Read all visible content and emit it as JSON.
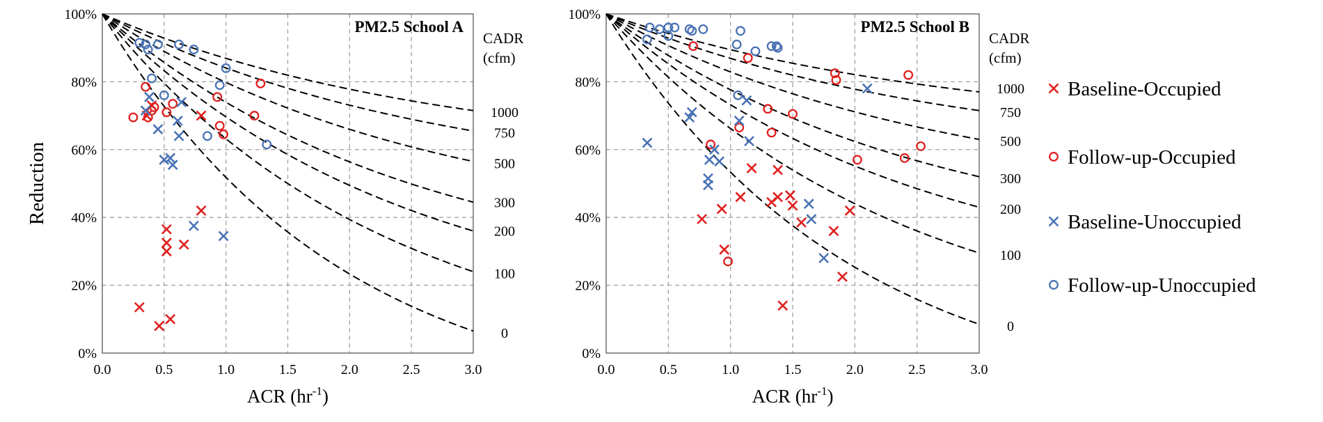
{
  "chart_data": [
    {
      "type": "scatter",
      "title": "PM2.5 School A",
      "xlabel": "ACR (hr",
      "xlabel_sup": "-1",
      "xlabel_close": ")",
      "ylabel": "Reduction",
      "xlim": [
        0,
        3
      ],
      "ylim": [
        0,
        100
      ],
      "x_ticks": [
        "0.0",
        "0.5",
        "1.0",
        "1.5",
        "2.0",
        "2.5",
        "3.0"
      ],
      "y_ticks": [
        "0%",
        "20%",
        "40%",
        "60%",
        "80%",
        "100%"
      ],
      "cadr_title": [
        "CADR",
        "(cfm)"
      ],
      "cadr_labels": [
        {
          "label": "1000",
          "y": 71
        },
        {
          "label": "750",
          "y": 65
        },
        {
          "label": "500",
          "y": 56
        },
        {
          "label": "300",
          "y": 44.5
        },
        {
          "label": "200",
          "y": 36
        },
        {
          "label": "100",
          "y": 23.5
        },
        {
          "label": "0",
          "y": 6
        }
      ],
      "curves": [
        {
          "label": "1000",
          "end": 71.5
        },
        {
          "label": "750",
          "end": 65.5
        },
        {
          "label": "500",
          "end": 56.5
        },
        {
          "label": "300",
          "end": 44.5
        },
        {
          "label": "200",
          "end": 36
        },
        {
          "label": "100",
          "end": 24
        },
        {
          "label": "0",
          "end": 6.5
        }
      ],
      "series": [
        {
          "name": "Baseline-Occupied",
          "points": [
            [
              0.3,
              13.5
            ],
            [
              0.46,
              8
            ],
            [
              0.55,
              10
            ],
            [
              0.52,
              30
            ],
            [
              0.52,
              32.5
            ],
            [
              0.52,
              36.5
            ],
            [
              0.66,
              32
            ],
            [
              0.8,
              42
            ],
            [
              0.36,
              70
            ],
            [
              0.4,
              73
            ],
            [
              0.8,
              70
            ]
          ]
        },
        {
          "name": "Follow-up-Occupied",
          "points": [
            [
              0.25,
              69.5
            ],
            [
              0.35,
              78.5
            ],
            [
              0.37,
              69.5
            ],
            [
              0.4,
              71.5
            ],
            [
              0.42,
              72.5
            ],
            [
              0.52,
              71
            ],
            [
              0.57,
              73.5
            ],
            [
              0.93,
              75.5
            ],
            [
              0.95,
              67
            ],
            [
              0.98,
              64.5
            ],
            [
              1.23,
              70
            ],
            [
              1.28,
              79.5
            ]
          ]
        },
        {
          "name": "Baseline-Unoccupied",
          "points": [
            [
              0.35,
              71.5
            ],
            [
              0.38,
              75.5
            ],
            [
              0.45,
              66
            ],
            [
              0.5,
              57
            ],
            [
              0.55,
              57.5
            ],
            [
              0.57,
              55.5
            ],
            [
              0.61,
              68.5
            ],
            [
              0.62,
              64
            ],
            [
              0.64,
              74
            ],
            [
              0.74,
              37.5
            ],
            [
              0.98,
              34.5
            ]
          ]
        },
        {
          "name": "Follow-up-Unoccupied",
          "points": [
            [
              0.3,
              91.5
            ],
            [
              0.35,
              91
            ],
            [
              0.37,
              89.5
            ],
            [
              0.45,
              91
            ],
            [
              0.4,
              81
            ],
            [
              0.5,
              76
            ],
            [
              0.62,
              91
            ],
            [
              0.74,
              89.5
            ],
            [
              0.85,
              64
            ],
            [
              0.95,
              79
            ],
            [
              1.0,
              84
            ],
            [
              1.33,
              61.5
            ]
          ]
        }
      ]
    },
    {
      "type": "scatter",
      "title": "PM2.5 School B",
      "xlabel": "ACR (hr",
      "xlabel_sup": "-1",
      "xlabel_close": ")",
      "xlim": [
        0,
        3
      ],
      "ylim": [
        0,
        100
      ],
      "x_ticks": [
        "0.0",
        "0.5",
        "1.0",
        "1.5",
        "2.0",
        "2.5",
        "3.0"
      ],
      "y_ticks": [
        "0%",
        "20%",
        "40%",
        "60%",
        "80%",
        "100%"
      ],
      "cadr_title": [
        "CADR",
        "(cfm)"
      ],
      "cadr_labels": [
        {
          "label": "1000",
          "y": 78
        },
        {
          "label": "750",
          "y": 71
        },
        {
          "label": "500",
          "y": 62.5
        },
        {
          "label": "300",
          "y": 51.5
        },
        {
          "label": "200",
          "y": 42.5
        },
        {
          "label": "100",
          "y": 29
        },
        {
          "label": "0",
          "y": 8
        }
      ],
      "curves": [
        {
          "label": "1000",
          "end": 77
        },
        {
          "label": "750",
          "end": 71.5
        },
        {
          "label": "500",
          "end": 63
        },
        {
          "label": "300",
          "end": 52
        },
        {
          "label": "200",
          "end": 43
        },
        {
          "label": "100",
          "end": 29.5
        },
        {
          "label": "0",
          "end": 8.5
        }
      ],
      "series": [
        {
          "name": "Baseline-Occupied",
          "points": [
            [
              0.77,
              39.5
            ],
            [
              0.95,
              30.5
            ],
            [
              0.93,
              42.5
            ],
            [
              1.08,
              46
            ],
            [
              1.17,
              54.5
            ],
            [
              1.33,
              44.5
            ],
            [
              1.38,
              54
            ],
            [
              1.38,
              46
            ],
            [
              1.42,
              14
            ],
            [
              1.48,
              46.5
            ],
            [
              1.5,
              43.5
            ],
            [
              1.57,
              38.5
            ],
            [
              1.83,
              36
            ],
            [
              1.9,
              22.5
            ],
            [
              1.96,
              42
            ]
          ]
        },
        {
          "name": "Follow-up-Occupied",
          "points": [
            [
              0.7,
              90.5
            ],
            [
              0.84,
              61.5
            ],
            [
              0.98,
              27
            ],
            [
              1.07,
              66.5
            ],
            [
              1.14,
              87
            ],
            [
              1.3,
              72
            ],
            [
              1.33,
              65
            ],
            [
              1.5,
              70.5
            ],
            [
              1.84,
              82.5
            ],
            [
              1.85,
              80.5
            ],
            [
              2.02,
              57
            ],
            [
              2.4,
              57.5
            ],
            [
              2.43,
              82
            ],
            [
              2.53,
              61
            ]
          ]
        },
        {
          "name": "Baseline-Unoccupied",
          "points": [
            [
              0.33,
              62
            ],
            [
              0.67,
              69.5
            ],
            [
              0.69,
              71
            ],
            [
              0.82,
              51.5
            ],
            [
              0.82,
              49.5
            ],
            [
              0.83,
              57
            ],
            [
              0.87,
              60
            ],
            [
              0.91,
              56.5
            ],
            [
              1.07,
              68.5
            ],
            [
              1.13,
              74.5
            ],
            [
              1.15,
              62.5
            ],
            [
              1.63,
              44
            ],
            [
              1.65,
              39.5
            ],
            [
              1.75,
              28
            ],
            [
              2.1,
              78
            ]
          ]
        },
        {
          "name": "Follow-up-Unoccupied",
          "points": [
            [
              0.33,
              92.5
            ],
            [
              0.35,
              96
            ],
            [
              0.43,
              95.5
            ],
            [
              0.5,
              93.5
            ],
            [
              0.5,
              96
            ],
            [
              0.55,
              96
            ],
            [
              0.67,
              95.5
            ],
            [
              0.69,
              95
            ],
            [
              0.78,
              95.5
            ],
            [
              1.05,
              91
            ],
            [
              1.08,
              95
            ],
            [
              1.06,
              76
            ],
            [
              1.2,
              89
            ],
            [
              1.33,
              90.5
            ],
            [
              1.38,
              90
            ],
            [
              1.37,
              90.5
            ]
          ]
        }
      ]
    }
  ],
  "legend": [
    {
      "name": "Baseline-Occupied",
      "color": "#e0201f",
      "marker": "x"
    },
    {
      "name": "Follow-up-Occupied",
      "color": "#e0201f",
      "marker": "o"
    },
    {
      "name": "Baseline-Unoccupied",
      "color": "#4a73b5",
      "marker": "x"
    },
    {
      "name": "Follow-up-Unoccupied",
      "color": "#4a73b5",
      "marker": "o"
    }
  ],
  "colors": {
    "red": "#e0201f",
    "blue": "#4a73b5",
    "grid": "#a6a6a6"
  }
}
